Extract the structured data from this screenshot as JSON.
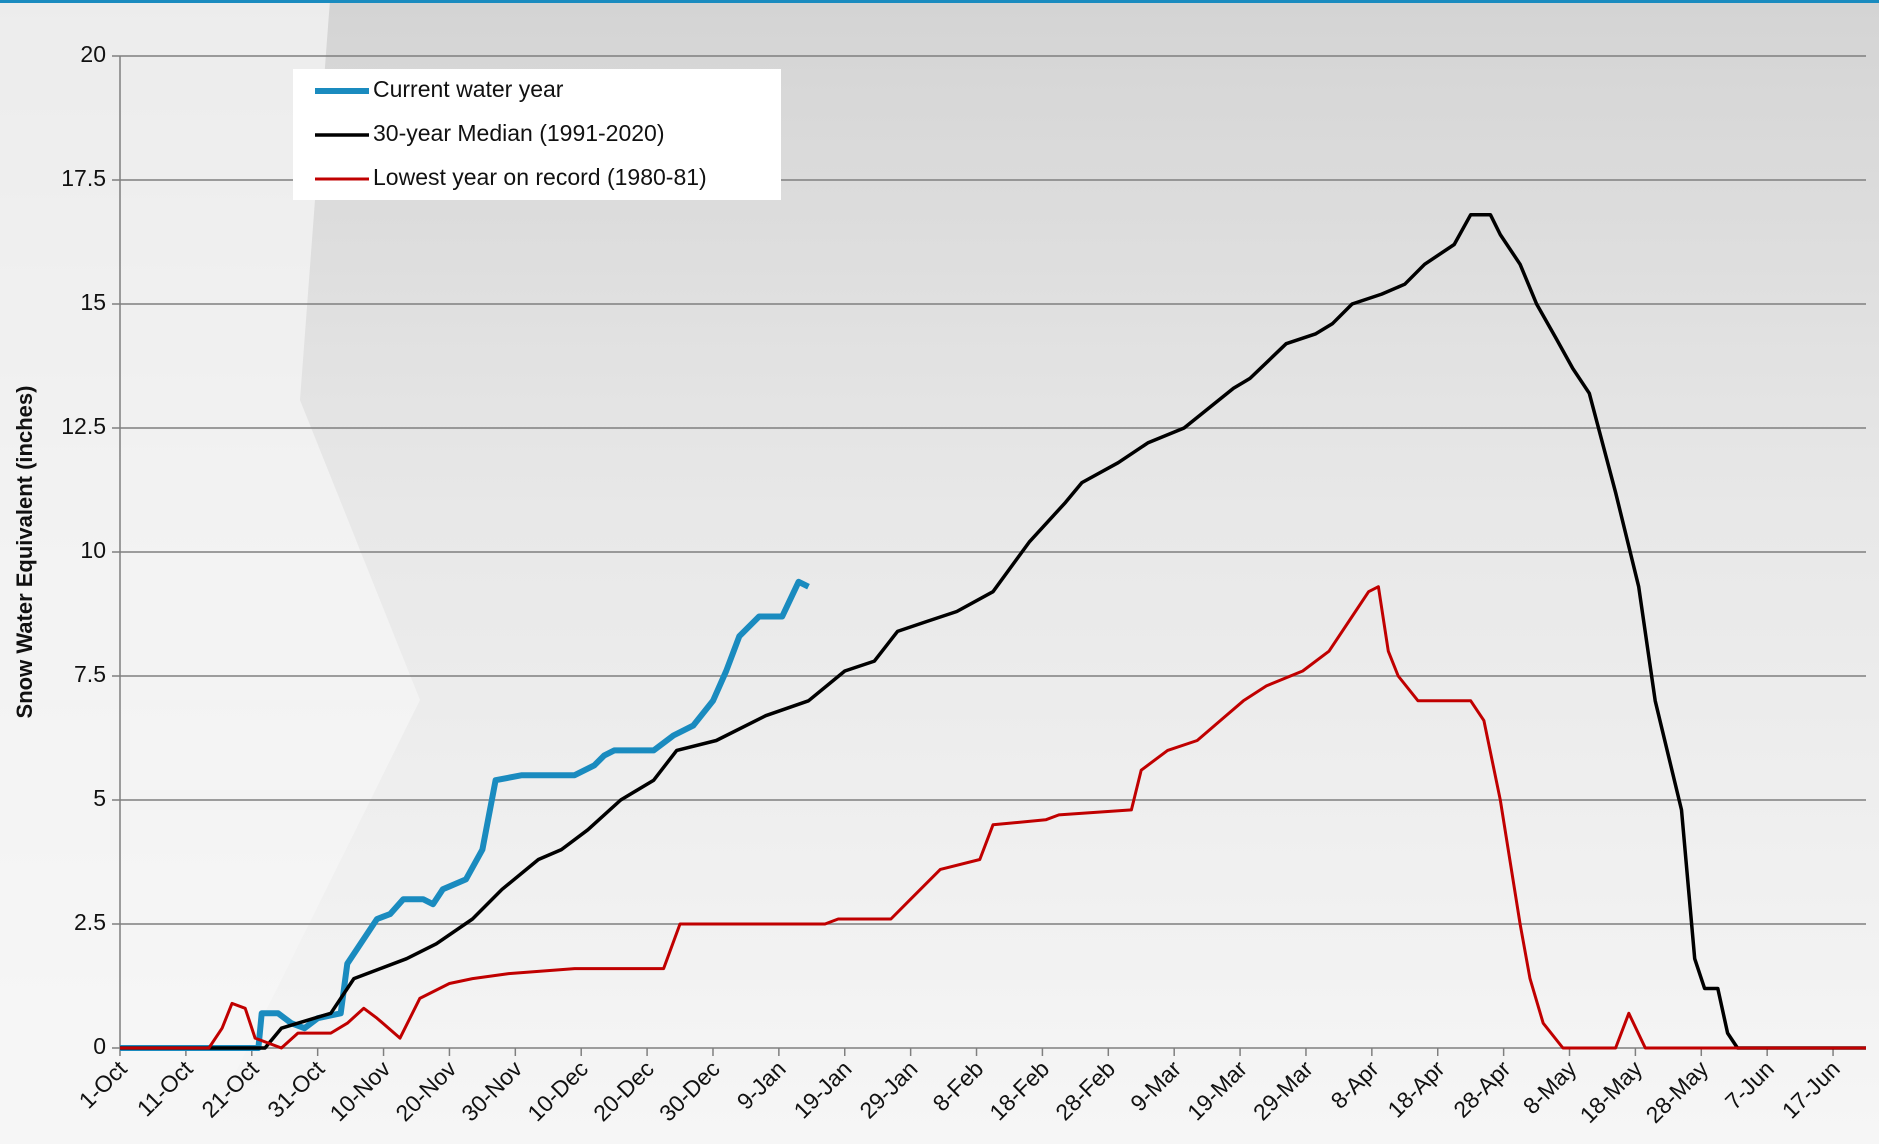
{
  "chart_data": {
    "type": "line",
    "ylabel": "Snow Water Equivalent (inches)",
    "xlim": [
      0,
      265
    ],
    "ylim": [
      0,
      20
    ],
    "yticks": [
      0,
      2.5,
      5,
      7.5,
      10,
      12.5,
      15,
      17.5,
      20
    ],
    "xticks": [
      {
        "value": 0,
        "label": "1-Oct"
      },
      {
        "value": 10,
        "label": "11-Oct"
      },
      {
        "value": 20,
        "label": "21-Oct"
      },
      {
        "value": 30,
        "label": "31-Oct"
      },
      {
        "value": 40,
        "label": "10-Nov"
      },
      {
        "value": 50,
        "label": "20-Nov"
      },
      {
        "value": 60,
        "label": "30-Nov"
      },
      {
        "value": 70,
        "label": "10-Dec"
      },
      {
        "value": 80,
        "label": "20-Dec"
      },
      {
        "value": 90,
        "label": "30-Dec"
      },
      {
        "value": 100,
        "label": "9-Jan"
      },
      {
        "value": 110,
        "label": "19-Jan"
      },
      {
        "value": 120,
        "label": "29-Jan"
      },
      {
        "value": 130,
        "label": "8-Feb"
      },
      {
        "value": 140,
        "label": "18-Feb"
      },
      {
        "value": 150,
        "label": "28-Feb"
      },
      {
        "value": 160,
        "label": "9-Mar"
      },
      {
        "value": 170,
        "label": "19-Mar"
      },
      {
        "value": 180,
        "label": "29-Mar"
      },
      {
        "value": 190,
        "label": "8-Apr"
      },
      {
        "value": 200,
        "label": "18-Apr"
      },
      {
        "value": 210,
        "label": "28-Apr"
      },
      {
        "value": 220,
        "label": "8-May"
      },
      {
        "value": 230,
        "label": "18-May"
      },
      {
        "value": 240,
        "label": "28-May"
      },
      {
        "value": 250,
        "label": "7-Jun"
      },
      {
        "value": 260,
        "label": "17-Jun"
      }
    ],
    "grid": true,
    "legend": "upper left",
    "series": [
      {
        "name": "Current water year",
        "color": "#1a8bbf",
        "width": 6,
        "x": [
          0,
          21,
          21.5,
          24,
          26,
          28,
          30,
          33.5,
          34.5,
          36,
          39,
          41,
          43,
          46,
          47.5,
          49,
          52.5,
          55,
          57,
          61,
          69,
          72,
          73.5,
          75,
          81,
          84,
          87,
          90,
          92,
          94,
          97,
          100.5,
          103,
          104.5
        ],
        "values": [
          0,
          0,
          0.7,
          0.7,
          0.5,
          0.4,
          0.6,
          0.7,
          1.7,
          2.0,
          2.6,
          2.7,
          3.0,
          3.0,
          2.9,
          3.2,
          3.4,
          4.0,
          5.4,
          5.5,
          5.5,
          5.7,
          5.9,
          6.0,
          6.0,
          6.3,
          6.5,
          7.0,
          7.6,
          8.3,
          8.7,
          8.7,
          9.4,
          9.3
        ]
      },
      {
        "name": "30-year Median (1991-2020)",
        "color": "#000000",
        "width": 3.5,
        "x": [
          0,
          22,
          24.5,
          29.5,
          32,
          35.5,
          39.5,
          43.5,
          48,
          53.5,
          58,
          63.5,
          67,
          71,
          76,
          81,
          84.5,
          90.5,
          98,
          104.5,
          110,
          114.5,
          118,
          122.5,
          127,
          132.5,
          138,
          143.5,
          146,
          151.5,
          156,
          161.5,
          169,
          171.5,
          177,
          181.5,
          184,
          187,
          191.5,
          195,
          198,
          202.5,
          205,
          208,
          209.5,
          212.5,
          215,
          218,
          220.5,
          223,
          227,
          230.5,
          233,
          237,
          239,
          240.5,
          242.5,
          244,
          245.5,
          265
        ],
        "values": [
          0,
          0,
          0.4,
          0.6,
          0.7,
          1.4,
          1.6,
          1.8,
          2.1,
          2.6,
          3.2,
          3.8,
          4.0,
          4.4,
          5.0,
          5.4,
          6.0,
          6.2,
          6.7,
          7.0,
          7.6,
          7.8,
          8.4,
          8.6,
          8.8,
          9.2,
          10.2,
          11.0,
          11.4,
          11.8,
          12.2,
          12.5,
          13.3,
          13.5,
          14.2,
          14.4,
          14.6,
          15.0,
          15.2,
          15.4,
          15.8,
          16.2,
          16.8,
          16.8,
          16.4,
          15.8,
          15.0,
          14.3,
          13.7,
          13.2,
          11.2,
          9.3,
          7.0,
          4.8,
          1.8,
          1.2,
          1.2,
          0.3,
          0,
          0
        ]
      },
      {
        "name": "Lowest year on record (1980-81)",
        "color": "#c00000",
        "width": 3,
        "x": [
          0,
          13.5,
          15.5,
          17,
          19,
          20.5,
          24.5,
          27,
          32,
          34.5,
          37,
          39,
          42.5,
          45.5,
          50,
          53.5,
          59,
          69,
          82.5,
          85,
          107,
          109,
          117,
          120,
          124.5,
          130.5,
          132.5,
          140.5,
          142.5,
          153.5,
          155,
          159,
          163.5,
          167,
          170.5,
          174,
          179.5,
          183.5,
          187,
          189.5,
          191,
          192.5,
          194,
          197,
          205,
          207,
          209.5,
          212.5,
          214,
          216,
          219,
          227,
          229,
          231.5,
          265
        ],
        "values": [
          0,
          0,
          0.4,
          0.9,
          0.8,
          0.2,
          0,
          0.3,
          0.3,
          0.5,
          0.8,
          0.6,
          0.2,
          1.0,
          1.3,
          1.4,
          1.5,
          1.6,
          1.6,
          2.5,
          2.5,
          2.6,
          2.6,
          3.0,
          3.6,
          3.8,
          4.5,
          4.6,
          4.7,
          4.8,
          5.6,
          6.0,
          6.2,
          6.6,
          7.0,
          7.3,
          7.6,
          8.0,
          8.7,
          9.2,
          9.3,
          8.0,
          7.5,
          7.0,
          7.0,
          6.6,
          5.0,
          2.5,
          1.4,
          0.5,
          0,
          0,
          0.7,
          0,
          0
        ]
      }
    ]
  }
}
